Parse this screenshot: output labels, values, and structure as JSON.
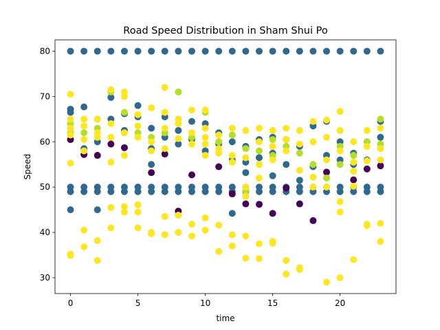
{
  "chart_data": {
    "type": "scatter",
    "title": "Road Speed Distribution in Sham Shui Po",
    "xlabel": "time",
    "ylabel": "Speed",
    "xlim": [
      -1.15,
      24.15
    ],
    "ylim": [
      26.5,
      82.5
    ],
    "xticks": [
      0,
      5,
      10,
      15,
      20
    ],
    "yticks": [
      30,
      40,
      50,
      60,
      70,
      80
    ],
    "grid": false,
    "legend": "none",
    "colors": {
      "dark": "#440154",
      "teal": "#31688e",
      "green": "#b5de2b",
      "yellow": "#fde725"
    },
    "series": [
      {
        "color": "#31688e",
        "points": [
          [
            0,
            80
          ],
          [
            1,
            80
          ],
          [
            2,
            80
          ],
          [
            3,
            80
          ],
          [
            4,
            80
          ],
          [
            5,
            80
          ],
          [
            6,
            80
          ],
          [
            7,
            80
          ],
          [
            8,
            80
          ],
          [
            9,
            80
          ],
          [
            10,
            80
          ],
          [
            11,
            80
          ],
          [
            12,
            80
          ],
          [
            13,
            80
          ],
          [
            14,
            80
          ],
          [
            15,
            80
          ],
          [
            16,
            80
          ],
          [
            17,
            80
          ],
          [
            18,
            80
          ],
          [
            19,
            80
          ],
          [
            20,
            80
          ],
          [
            21,
            80
          ],
          [
            22,
            80
          ],
          [
            23,
            80
          ],
          [
            0,
            50
          ],
          [
            1,
            50
          ],
          [
            2,
            50
          ],
          [
            3,
            50
          ],
          [
            4,
            50
          ],
          [
            5,
            50
          ],
          [
            6,
            50
          ],
          [
            7,
            50
          ],
          [
            8,
            50
          ],
          [
            9,
            50
          ],
          [
            10,
            50
          ],
          [
            11,
            50
          ],
          [
            12,
            50
          ],
          [
            13,
            50
          ],
          [
            14,
            50
          ],
          [
            15,
            50
          ],
          [
            16,
            50
          ],
          [
            17,
            50
          ],
          [
            18,
            50
          ],
          [
            19,
            50
          ],
          [
            20,
            50
          ],
          [
            21,
            50
          ],
          [
            22,
            50
          ],
          [
            23,
            50
          ],
          [
            0,
            49
          ],
          [
            1,
            49
          ],
          [
            2,
            49
          ],
          [
            3,
            49
          ],
          [
            4,
            49
          ],
          [
            5,
            49
          ],
          [
            6,
            49
          ],
          [
            7,
            49
          ],
          [
            8,
            49
          ],
          [
            9,
            49
          ],
          [
            10,
            49
          ],
          [
            11,
            49
          ],
          [
            12,
            49
          ],
          [
            13,
            49
          ],
          [
            14,
            49
          ],
          [
            15,
            49
          ],
          [
            16,
            49
          ],
          [
            17,
            49
          ],
          [
            18,
            49
          ],
          [
            19,
            49
          ],
          [
            20,
            49
          ],
          [
            21,
            49
          ],
          [
            22,
            49
          ],
          [
            23,
            49
          ],
          [
            0,
            45
          ],
          [
            2,
            45
          ],
          [
            12,
            44.2
          ],
          [
            15,
            52.5
          ],
          [
            0,
            66.5
          ],
          [
            0,
            67.2
          ],
          [
            1,
            67.7
          ],
          [
            1,
            58.5
          ],
          [
            2,
            60
          ],
          [
            3,
            65
          ],
          [
            3,
            69.8
          ],
          [
            4,
            66.2
          ],
          [
            4,
            62.5
          ],
          [
            5,
            68
          ],
          [
            5,
            65.5
          ],
          [
            6,
            63
          ],
          [
            6,
            55
          ],
          [
            6,
            58.5
          ],
          [
            7,
            65.5
          ],
          [
            7,
            61
          ],
          [
            8,
            62.5
          ],
          [
            8,
            59.5
          ],
          [
            9,
            64.5
          ],
          [
            9,
            60.5
          ],
          [
            10,
            64
          ],
          [
            10,
            58
          ],
          [
            11,
            62
          ],
          [
            11,
            59.5
          ],
          [
            12,
            60
          ],
          [
            12,
            56
          ],
          [
            13,
            59
          ],
          [
            13,
            55.5
          ],
          [
            13,
            53.2
          ],
          [
            14,
            60.5
          ],
          [
            14,
            56.5
          ],
          [
            15,
            61
          ],
          [
            15,
            57.5
          ],
          [
            16,
            60.5
          ],
          [
            16,
            55
          ],
          [
            17,
            59
          ],
          [
            17,
            51.5
          ],
          [
            18,
            63.5
          ],
          [
            18,
            54.5
          ],
          [
            19,
            64.5
          ],
          [
            19,
            57
          ],
          [
            20,
            60
          ],
          [
            20,
            56
          ],
          [
            21,
            57.5
          ],
          [
            21,
            55
          ],
          [
            22,
            60
          ],
          [
            22,
            56
          ],
          [
            23,
            64.5
          ],
          [
            23,
            61
          ]
        ]
      },
      {
        "color": "#440154",
        "points": [
          [
            0,
            60.5
          ],
          [
            1,
            57.2
          ],
          [
            2,
            57
          ],
          [
            3,
            59.5
          ],
          [
            4,
            58.7
          ],
          [
            6,
            53.2
          ],
          [
            7,
            57.3
          ],
          [
            8,
            44.7
          ],
          [
            9,
            52.7
          ],
          [
            11,
            54.5
          ],
          [
            12,
            48.5
          ],
          [
            13,
            46.3
          ],
          [
            14,
            46.2
          ],
          [
            15,
            44.2
          ],
          [
            16,
            49.8
          ],
          [
            17,
            46.3
          ],
          [
            18,
            42.6
          ],
          [
            19,
            53.3
          ],
          [
            21,
            51.6
          ],
          [
            22,
            54
          ],
          [
            23,
            54.7
          ]
        ]
      },
      {
        "color": "#b5de2b",
        "points": [
          [
            0,
            64
          ],
          [
            0,
            62
          ],
          [
            1,
            62
          ],
          [
            2,
            63
          ],
          [
            3,
            71
          ],
          [
            4,
            66.5
          ],
          [
            5,
            62
          ],
          [
            6,
            61
          ],
          [
            7,
            62
          ],
          [
            8,
            71
          ],
          [
            9,
            61
          ],
          [
            10,
            66.5
          ],
          [
            11,
            60
          ],
          [
            12,
            61.5
          ],
          [
            13,
            58.5
          ],
          [
            14,
            58
          ],
          [
            15,
            60.5
          ],
          [
            16,
            59
          ],
          [
            17,
            57.5
          ],
          [
            18,
            55
          ],
          [
            19,
            52
          ],
          [
            20,
            59
          ],
          [
            21,
            57
          ],
          [
            22,
            60
          ],
          [
            23,
            65
          ],
          [
            23,
            59.5
          ],
          [
            13,
            49.2
          ],
          [
            15,
            57
          ],
          [
            20,
            55
          ]
        ]
      },
      {
        "color": "#fde725",
        "points": [
          [
            0,
            70.5
          ],
          [
            0,
            65
          ],
          [
            0,
            63
          ],
          [
            0,
            61.5
          ],
          [
            0,
            55.3
          ],
          [
            0,
            35.2
          ],
          [
            0,
            34.9
          ],
          [
            1,
            65
          ],
          [
            1,
            63.5
          ],
          [
            1,
            60.5
          ],
          [
            1,
            58
          ],
          [
            1,
            40.5
          ],
          [
            1,
            36.8
          ],
          [
            2,
            65
          ],
          [
            2,
            62
          ],
          [
            2,
            61
          ],
          [
            2,
            38.2
          ],
          [
            2,
            33.8
          ],
          [
            3,
            71.5
          ],
          [
            3,
            64
          ],
          [
            3,
            61
          ],
          [
            3,
            55.5
          ],
          [
            3,
            45.5
          ],
          [
            3,
            41
          ],
          [
            4,
            71
          ],
          [
            4,
            70
          ],
          [
            4,
            62
          ],
          [
            4,
            57
          ],
          [
            4,
            45.7
          ],
          [
            4,
            44.5
          ],
          [
            5,
            66
          ],
          [
            5,
            63.5
          ],
          [
            5,
            61
          ],
          [
            5,
            46.1
          ],
          [
            5,
            44.5
          ],
          [
            5,
            41
          ],
          [
            6,
            67.5
          ],
          [
            6,
            60
          ],
          [
            6,
            58
          ],
          [
            6,
            40
          ],
          [
            6,
            39.7
          ],
          [
            7,
            72
          ],
          [
            7,
            66.5
          ],
          [
            7,
            63
          ],
          [
            7,
            58.5
          ],
          [
            7,
            43.5
          ],
          [
            7,
            39.5
          ],
          [
            8,
            65
          ],
          [
            8,
            64
          ],
          [
            8,
            60.7
          ],
          [
            8,
            43.8
          ],
          [
            8,
            40
          ],
          [
            9,
            67
          ],
          [
            9,
            62
          ],
          [
            9,
            59.5
          ],
          [
            9,
            41.8
          ],
          [
            9,
            39.2
          ],
          [
            10,
            67
          ],
          [
            10,
            63
          ],
          [
            10,
            61
          ],
          [
            10,
            59.5
          ],
          [
            10,
            57
          ],
          [
            10,
            43.2
          ],
          [
            10,
            40.5
          ],
          [
            11,
            61.5
          ],
          [
            11,
            58.5
          ],
          [
            11,
            57.5
          ],
          [
            11,
            41.6
          ],
          [
            11,
            35.8
          ],
          [
            12,
            63
          ],
          [
            12,
            57
          ],
          [
            12,
            55.5
          ],
          [
            12,
            39.5
          ],
          [
            12,
            37
          ],
          [
            13,
            62.5
          ],
          [
            13,
            56.5
          ],
          [
            13,
            50
          ],
          [
            13,
            48
          ],
          [
            13,
            39.2
          ],
          [
            13,
            34.3
          ],
          [
            14,
            63
          ],
          [
            14,
            60
          ],
          [
            14,
            55
          ],
          [
            14,
            52
          ],
          [
            14,
            37.5
          ],
          [
            14,
            34.2
          ],
          [
            15,
            62.5
          ],
          [
            15,
            59
          ],
          [
            15,
            56
          ],
          [
            15,
            38
          ],
          [
            15,
            37.6
          ],
          [
            16,
            63
          ],
          [
            16,
            60.5
          ],
          [
            16,
            58
          ],
          [
            16,
            33.8
          ],
          [
            16,
            30.8
          ],
          [
            17,
            62.5
          ],
          [
            17,
            59.5
          ],
          [
            17,
            53.7
          ],
          [
            17,
            32.2
          ],
          [
            17,
            31.8
          ],
          [
            18,
            64.5
          ],
          [
            18,
            60
          ],
          [
            18,
            52.2
          ],
          [
            18,
            50
          ],
          [
            19,
            64.8
          ],
          [
            19,
            61
          ],
          [
            19,
            56
          ],
          [
            19,
            50
          ],
          [
            19,
            29
          ],
          [
            20,
            66.7
          ],
          [
            20,
            62.5
          ],
          [
            20,
            58
          ],
          [
            20,
            46.8
          ],
          [
            20,
            44.5
          ],
          [
            20,
            30
          ],
          [
            21,
            60
          ],
          [
            21,
            55.5
          ],
          [
            21,
            53.5
          ],
          [
            21,
            50.2
          ],
          [
            21,
            34
          ],
          [
            22,
            62.5
          ],
          [
            22,
            59
          ],
          [
            22,
            55.8
          ],
          [
            22,
            41.8
          ],
          [
            22,
            41.5
          ],
          [
            23,
            63
          ],
          [
            23,
            58.5
          ],
          [
            23,
            56
          ],
          [
            23,
            42
          ],
          [
            23,
            38
          ]
        ]
      }
    ]
  }
}
